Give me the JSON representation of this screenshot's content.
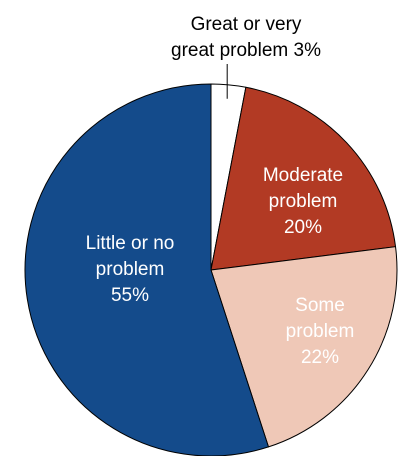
{
  "chart_data": {
    "type": "pie",
    "title": "",
    "slices": [
      {
        "label_lines": [
          "Great or very",
          "great problem  3%"
        ],
        "value": 3,
        "color": "#ffffff",
        "label_color": "#000000"
      },
      {
        "label_lines": [
          "Moderate",
          "problem",
          "20%"
        ],
        "value": 20,
        "color": "#b23a24",
        "label_color": "#ffffff"
      },
      {
        "label_lines": [
          "Some",
          "problem",
          "22%"
        ],
        "value": 22,
        "color": "#efc8b7",
        "label_color": "#ffffff"
      },
      {
        "label_lines": [
          "Little or no",
          "problem",
          "55%"
        ],
        "value": 55,
        "color": "#144b8b",
        "label_color": "#ffffff"
      }
    ],
    "legend": "none",
    "start_angle": "12 o'clock",
    "direction": "clockwise"
  }
}
